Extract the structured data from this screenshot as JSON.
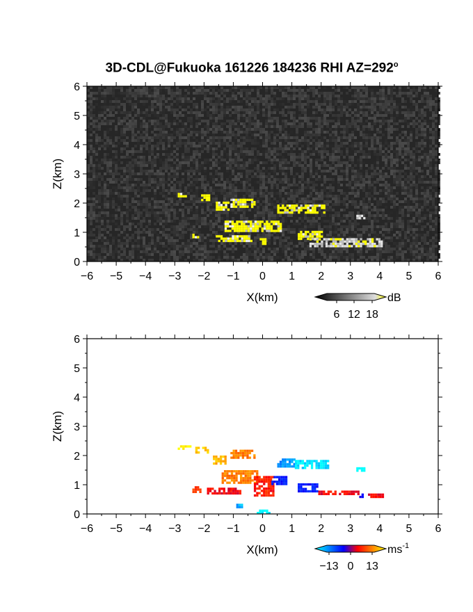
{
  "title": "3D-CDL@Fukuoka 161226 184236 RHI AZ=292",
  "title_degree": "o",
  "chart_data": [
    {
      "type": "heatmap",
      "quantity": "reflectivity (SNR)",
      "xlabel": "X(km)",
      "ylabel": "Z(km)",
      "xlim": [
        -6,
        6
      ],
      "ylim": [
        0,
        6
      ],
      "xticks": [
        -6,
        -5,
        -4,
        -3,
        -2,
        -1,
        0,
        1,
        2,
        3,
        4,
        5,
        6
      ],
      "yticks": [
        0,
        1,
        2,
        3,
        4,
        5,
        6
      ],
      "background": "noise (grey, low dB)",
      "colorbar": {
        "unit": "dB",
        "ticks": [
          "6",
          "12",
          "18"
        ],
        "colors": [
          "#000000",
          "#777777",
          "#dddddd",
          "#ffff00"
        ]
      },
      "regions": [
        {
          "x": [
            -2.9,
            -2.6
          ],
          "z": [
            2.2,
            2.35
          ],
          "value": "high (>18 dB)"
        },
        {
          "x": [
            -2.1,
            -1.8
          ],
          "z": [
            2.1,
            2.3
          ],
          "value": "high (>18 dB)"
        },
        {
          "x": [
            -1.6,
            -1.2
          ],
          "z": [
            1.75,
            2.05
          ],
          "value": "high (>18 dB)"
        },
        {
          "x": [
            -1.1,
            -0.3
          ],
          "z": [
            1.9,
            2.15
          ],
          "value": "high (>18 dB)"
        },
        {
          "x": [
            0.5,
            2.1
          ],
          "z": [
            1.7,
            1.95
          ],
          "value": "high (>18 dB)"
        },
        {
          "x": [
            -1.3,
            0.6
          ],
          "z": [
            1.05,
            1.4
          ],
          "value": "high (>18 dB)"
        },
        {
          "x": [
            -2.4,
            -2.2
          ],
          "z": [
            0.8,
            0.95
          ],
          "value": "high (>18 dB)"
        },
        {
          "x": [
            -1.6,
            -0.4
          ],
          "z": [
            0.7,
            0.9
          ],
          "value": "high (>18 dB)"
        },
        {
          "x": [
            1.2,
            2.0
          ],
          "z": [
            0.75,
            1.05
          ],
          "value": "high (>18 dB)"
        },
        {
          "x": [
            -0.1,
            0.1
          ],
          "z": [
            0.6,
            0.8
          ],
          "value": "high (>18 dB)"
        },
        {
          "x": [
            1.6,
            4.1
          ],
          "z": [
            0.55,
            0.8
          ],
          "value": "moderate (12-18 dB)"
        },
        {
          "x": [
            3.2,
            3.5
          ],
          "z": [
            1.45,
            1.6
          ],
          "value": "moderate (12-18 dB)"
        }
      ]
    },
    {
      "type": "heatmap",
      "quantity": "Doppler radial velocity",
      "xlabel": "X(km)",
      "ylabel": "Z(km)",
      "xlim": [
        -6,
        6
      ],
      "ylim": [
        0,
        6
      ],
      "xticks": [
        -6,
        -5,
        -4,
        -3,
        -2,
        -1,
        0,
        1,
        2,
        3,
        4,
        5,
        6
      ],
      "yticks": [
        0,
        1,
        2,
        3,
        4,
        5,
        6
      ],
      "colorbar": {
        "unit": "ms",
        "unit_exponent": "-1",
        "ticks": [
          "-13",
          "0",
          "13"
        ],
        "colors": [
          "#00ffff",
          "#0090ff",
          "#0000ff",
          "#800080",
          "#ff0000",
          "#ff8000",
          "#ffff00"
        ]
      },
      "regions": [
        {
          "x": [
            -2.9,
            -2.5
          ],
          "z": [
            2.2,
            2.35
          ],
          "velocity": 13
        },
        {
          "x": [
            -2.3,
            -1.9
          ],
          "z": [
            2.1,
            2.3
          ],
          "velocity": 11
        },
        {
          "x": [
            -1.7,
            -1.3
          ],
          "z": [
            1.7,
            2.0
          ],
          "velocity": 10
        },
        {
          "x": [
            -1.1,
            -0.3
          ],
          "z": [
            1.9,
            2.2
          ],
          "velocity": 8
        },
        {
          "x": [
            0.5,
            1.1
          ],
          "z": [
            1.6,
            1.9
          ],
          "velocity": -9
        },
        {
          "x": [
            1.1,
            2.2
          ],
          "z": [
            1.6,
            1.85
          ],
          "velocity": -12
        },
        {
          "x": [
            3.2,
            3.5
          ],
          "z": [
            1.45,
            1.6
          ],
          "velocity": -13
        },
        {
          "x": [
            -1.4,
            -0.2
          ],
          "z": [
            1.1,
            1.5
          ],
          "velocity": 8
        },
        {
          "x": [
            -0.3,
            0.4
          ],
          "z": [
            0.6,
            1.3
          ],
          "velocity": 4
        },
        {
          "x": [
            0.3,
            0.8
          ],
          "z": [
            1.0,
            1.3
          ],
          "velocity": -4
        },
        {
          "x": [
            -2.4,
            -2.1
          ],
          "z": [
            0.75,
            0.95
          ],
          "velocity": 5
        },
        {
          "x": [
            -1.9,
            -0.8
          ],
          "z": [
            0.7,
            0.9
          ],
          "velocity": 3
        },
        {
          "x": [
            1.2,
            1.9
          ],
          "z": [
            0.75,
            1.05
          ],
          "velocity": -4
        },
        {
          "x": [
            1.9,
            3.3
          ],
          "z": [
            0.65,
            0.8
          ],
          "velocity": 3
        },
        {
          "x": [
            3.3,
            3.5
          ],
          "z": [
            0.55,
            0.7
          ],
          "velocity": -3
        },
        {
          "x": [
            3.6,
            4.1
          ],
          "z": [
            0.55,
            0.7
          ],
          "velocity": 3
        },
        {
          "x": [
            -0.9,
            -0.7
          ],
          "z": [
            0.25,
            0.35
          ],
          "velocity": -10
        },
        {
          "x": [
            -0.2,
            0.2
          ],
          "z": [
            0.0,
            0.15
          ],
          "velocity": -13
        }
      ]
    }
  ]
}
